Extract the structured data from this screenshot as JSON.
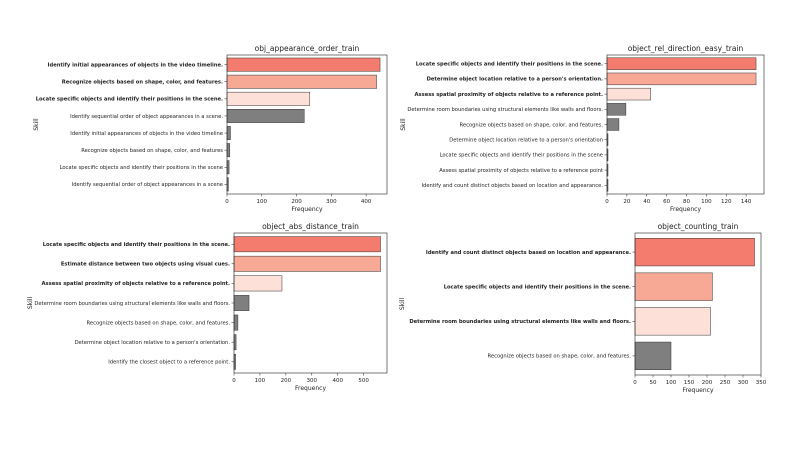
{
  "colors": {
    "top1": "#f47c6e",
    "top2": "#f7a996",
    "top3": "#fde1d8",
    "rest": "#7f7f7f"
  },
  "chart_data": [
    {
      "type": "bar",
      "orientation": "horizontal",
      "title": "obj_appearance_order_train",
      "xlabel": "Frequency",
      "ylabel": "Skill",
      "xlim": [
        0,
        460
      ],
      "xticks": [
        0,
        100,
        200,
        300,
        400
      ],
      "categories": [
        "Identify initial appearances of objects in the video timeline.",
        "Recognize objects based on shape, color, and features.",
        "Locate specific objects and identify their positions in the scene.",
        "Identify sequential order of object appearances in a scene.",
        "Identify initial appearances of objects in the video timeline",
        "Recognize objects based on shape, color, and features",
        "Locate specific objects and identify their positions in the scene",
        "Identify sequential order of object appearances in a scene"
      ],
      "values": [
        440,
        430,
        238,
        222,
        10,
        8,
        6,
        4
      ],
      "bold": [
        true,
        true,
        true,
        false,
        false,
        false,
        false,
        false
      ]
    },
    {
      "type": "bar",
      "orientation": "horizontal",
      "title": "object_rel_direction_easy_train",
      "xlabel": "Frequency",
      "ylabel": "Skill",
      "xlim": [
        0,
        158
      ],
      "xticks": [
        0,
        20,
        40,
        60,
        80,
        100,
        120,
        140
      ],
      "categories": [
        "Locate specific objects and identify their positions in the scene.",
        "Determine object location relative to a person's orientation.",
        "Assess spatial proximity of objects relative to a reference point.",
        "Determine room boundaries using structural elements like walls and floors.",
        "Recognize objects based on shape, color, and features.",
        "Determine object location relative to a person's orientation",
        "Locate specific objects and identify their positions in the scene",
        "Assess spatial proximity of objects relative to a reference point",
        "Identify and count distinct objects based on location and appearance."
      ],
      "values": [
        150,
        150,
        44,
        19,
        12,
        1,
        1,
        1,
        1
      ],
      "bold": [
        true,
        true,
        true,
        false,
        false,
        false,
        false,
        false,
        false
      ]
    },
    {
      "type": "bar",
      "orientation": "horizontal",
      "title": "object_abs_distance_train",
      "xlabel": "Frequency",
      "ylabel": "Skill",
      "xlim": [
        0,
        590
      ],
      "xticks": [
        0,
        100,
        200,
        300,
        400,
        500
      ],
      "categories": [
        "Locate specific objects and identify their positions in the scene.",
        "Estimate distance between two objects using visual cues.",
        "Assess spatial proximity of objects relative to a reference point.",
        "Determine room boundaries using structural elements like walls and floors.",
        "Recognize objects based on shape, color, and features.",
        "Determine object location relative to a person's orientation.",
        "Identify the closest object to a reference point."
      ],
      "values": [
        565,
        565,
        185,
        58,
        15,
        8,
        6
      ],
      "bold": [
        true,
        true,
        true,
        false,
        false,
        false,
        false
      ]
    },
    {
      "type": "bar",
      "orientation": "horizontal",
      "title": "object_counting_train",
      "xlabel": "Frequency",
      "ylabel": "Skill",
      "xlim": [
        0,
        350
      ],
      "xticks": [
        0,
        50,
        100,
        150,
        200,
        250,
        300,
        350
      ],
      "categories": [
        "Identify and count distinct objects based on location and appearance.",
        "Locate specific objects and identify their positions in the scene.",
        "Determine room boundaries using structural elements like walls and floors.",
        "Recognize objects based on shape, color, and features."
      ],
      "values": [
        332,
        215,
        210,
        100
      ],
      "bold": [
        true,
        true,
        true,
        false
      ]
    }
  ]
}
